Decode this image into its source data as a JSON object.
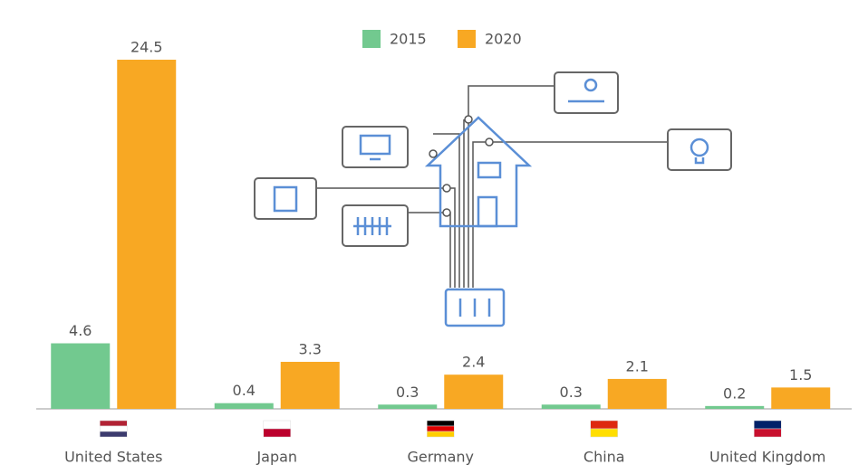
{
  "chart_data": {
    "type": "bar",
    "categories": [
      "United States",
      "Japan",
      "Germany",
      "China",
      "United Kingdom"
    ],
    "series": [
      {
        "name": "2015",
        "color": "#72c98f",
        "values": [
          4.6,
          0.4,
          0.3,
          0.3,
          0.2
        ]
      },
      {
        "name": "2020",
        "color": "#f8a823",
        "values": [
          24.5,
          3.3,
          2.4,
          2.1,
          1.5
        ]
      }
    ]
  }
}
